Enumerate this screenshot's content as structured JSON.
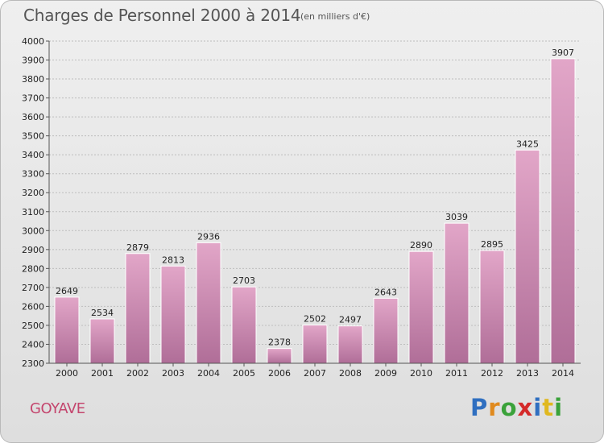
{
  "title": "Charges de Personnel 2000 à 2014",
  "subtitle": "(en milliers d'€)",
  "commune": "GOYAVE",
  "logo": "Proxiti",
  "colors": {
    "bar_top": "#e2a6c8",
    "bar_bottom": "#b06e98",
    "grid": "#bdbdbd",
    "commune": "#c4466e"
  },
  "chart_data": {
    "type": "bar",
    "title": "Charges de Personnel 2000 à 2014",
    "subtitle": "(en milliers d'€)",
    "categories": [
      "2000",
      "2001",
      "2002",
      "2003",
      "2004",
      "2005",
      "2006",
      "2007",
      "2008",
      "2009",
      "2010",
      "2011",
      "2012",
      "2013",
      "2014"
    ],
    "values": [
      2649,
      2534,
      2879,
      2813,
      2936,
      2703,
      2378,
      2502,
      2497,
      2643,
      2890,
      3039,
      2895,
      3425,
      3907
    ],
    "ylim": [
      2300,
      4000
    ],
    "yticks": [
      2300,
      2400,
      2500,
      2600,
      2700,
      2800,
      2900,
      3000,
      3100,
      3200,
      3300,
      3400,
      3500,
      3600,
      3700,
      3800,
      3900,
      4000
    ],
    "grid": true
  }
}
